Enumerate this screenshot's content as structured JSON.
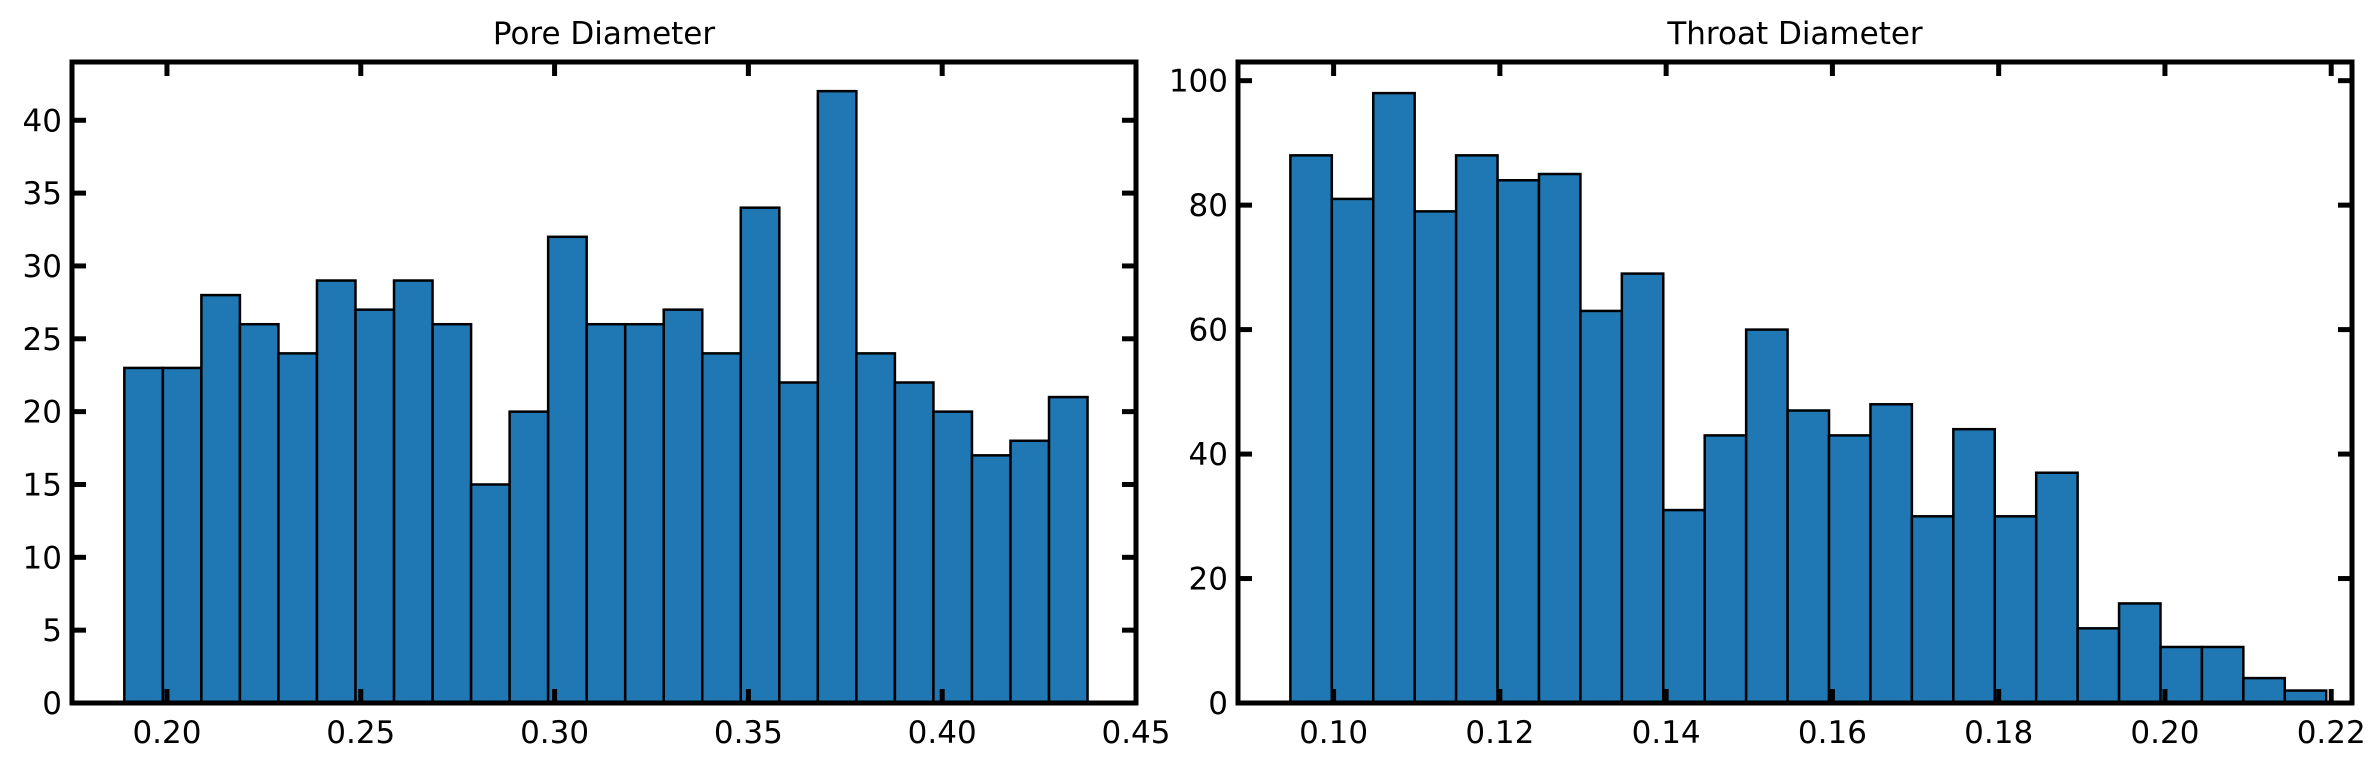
{
  "chart_data": [
    {
      "type": "bar",
      "title": "Pore Diameter",
      "xlabel": "",
      "ylabel": "",
      "xlim": [
        0.1755,
        0.45
      ],
      "ylim": [
        0,
        44
      ],
      "xticks": [
        0.2,
        0.25,
        0.3,
        0.35,
        0.4,
        0.45
      ],
      "xtick_labels": [
        "0.20",
        "0.25",
        "0.30",
        "0.35",
        "0.40",
        "0.45"
      ],
      "yticks": [
        0,
        5,
        10,
        15,
        20,
        25,
        30,
        35,
        40
      ],
      "ytick_labels": [
        "0",
        "5",
        "10",
        "15",
        "20",
        "25",
        "30",
        "35",
        "40"
      ],
      "bin_start": 0.189,
      "bin_end": 0.4375,
      "values": [
        23,
        23,
        28,
        26,
        24,
        29,
        27,
        29,
        26,
        15,
        20,
        32,
        26,
        26,
        27,
        24,
        34,
        22,
        42,
        24,
        22,
        20,
        17,
        18,
        21
      ],
      "bar_color": "#1f77b4",
      "edge_color": "#000000",
      "grid": false,
      "legend": "none"
    },
    {
      "type": "bar",
      "title": "Throat Diameter",
      "xlabel": "",
      "ylabel": "",
      "xlim": [
        0.0885,
        0.2225
      ],
      "ylim": [
        0,
        103
      ],
      "xticks": [
        0.1,
        0.12,
        0.14,
        0.16,
        0.18,
        0.2,
        0.22
      ],
      "xtick_labels": [
        "0.10",
        "0.12",
        "0.14",
        "0.16",
        "0.18",
        "0.20",
        "0.22"
      ],
      "yticks": [
        0,
        20,
        40,
        60,
        80,
        100
      ],
      "ytick_labels": [
        "0",
        "20",
        "40",
        "60",
        "80",
        "100"
      ],
      "bin_start": 0.0948,
      "bin_end": 0.2194,
      "values": [
        88,
        81,
        98,
        79,
        88,
        84,
        85,
        63,
        69,
        31,
        43,
        60,
        47,
        43,
        48,
        30,
        44,
        30,
        37,
        12,
        16,
        9,
        9,
        4,
        2
      ],
      "bar_color": "#1f77b4",
      "edge_color": "#000000",
      "grid": false,
      "legend": "none"
    }
  ]
}
